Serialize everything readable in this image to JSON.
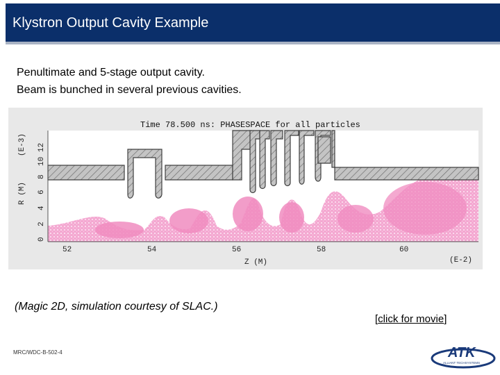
{
  "slide": {
    "title": "Klystron Output Cavity Example",
    "intro_line1": "Penultimate and 5-stage output cavity.",
    "intro_line2": "Beam is bunched in several previous cavities.",
    "caption": "(Magic 2D, simulation courtesy of SLAC.)",
    "movie_open": "[",
    "movie_link": "click for movie",
    "movie_close": "]",
    "doc_id": "MRC/WDC-B-502-4",
    "logo_text": "ATK",
    "logo_sub": "ALLIANT TECHSYSTEMS"
  },
  "simulation": {
    "header": "Time 78.500 ns: PHASESPACE for all particles",
    "y_axis_label": "R (M)",
    "y_axis_exp": "(E-3)",
    "x_axis_label": "Z (M)",
    "x_axis_exp": "(E-2)",
    "y_ticks": [
      "0",
      "2",
      "4",
      "6",
      "8",
      "10",
      "12"
    ],
    "x_ticks": [
      "52",
      "54",
      "56",
      "58",
      "60"
    ],
    "colors": {
      "beam": "#f08cc0",
      "structure": "#b9b9b9",
      "background": "#ffffff",
      "frame": "#e6e6e6"
    }
  }
}
